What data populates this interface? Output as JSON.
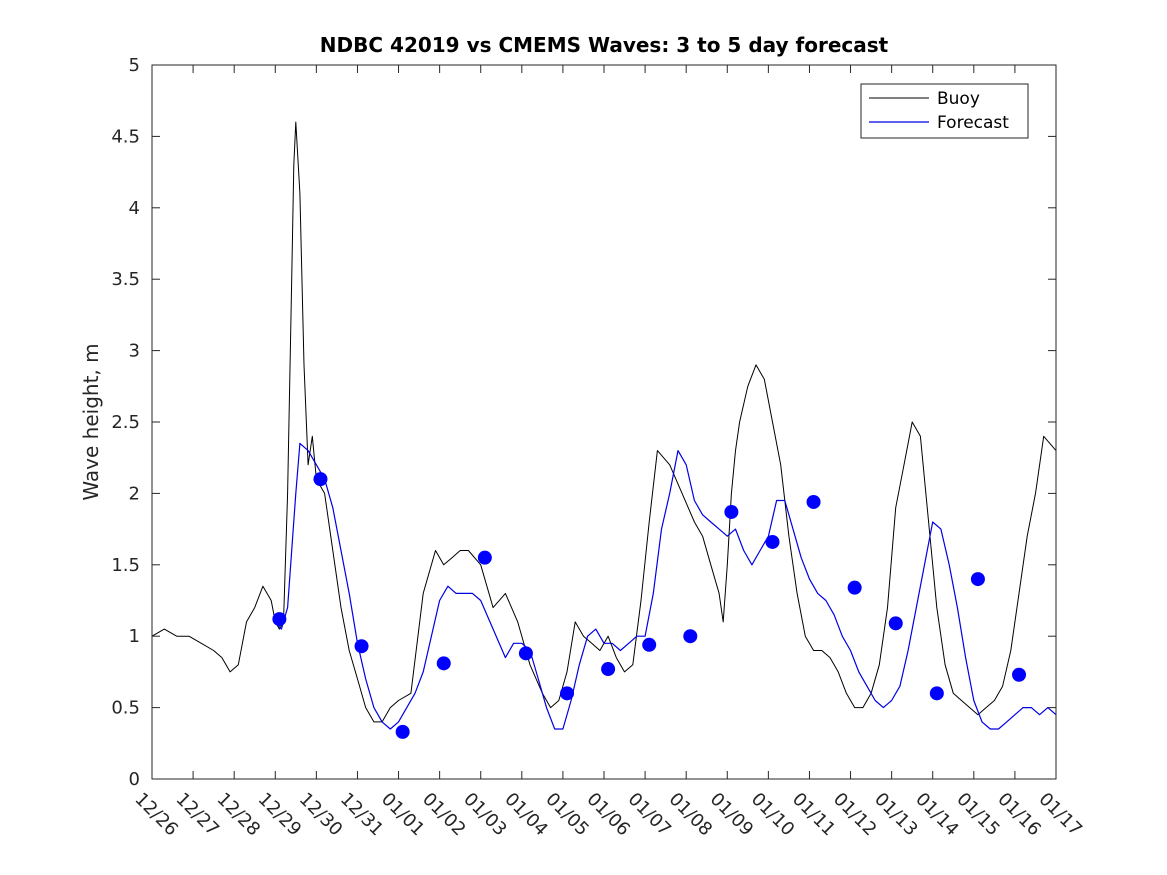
{
  "chart_data": {
    "type": "line",
    "title": "NDBC 42019 vs CMEMS Waves: 3 to 5 day forecast",
    "xlabel": "",
    "ylabel": "Wave height, m",
    "xlim": [
      0,
      22
    ],
    "ylim": [
      0,
      5
    ],
    "y_ticks": [
      0,
      0.5,
      1,
      1.5,
      2,
      2.5,
      3,
      3.5,
      4,
      4.5,
      5
    ],
    "y_tick_labels": [
      "0",
      "0.5",
      "1",
      "1.5",
      "2",
      "2.5",
      "3",
      "3.5",
      "4",
      "4.5",
      "5"
    ],
    "x_tick_labels": [
      "12/26",
      "12/27",
      "12/28",
      "12/29",
      "12/30",
      "12/31",
      "01/01",
      "01/02",
      "01/03",
      "01/04",
      "01/05",
      "01/06",
      "01/07",
      "01/08",
      "01/09",
      "01/10",
      "01/11",
      "01/12",
      "01/13",
      "01/14",
      "01/15",
      "01/16",
      "01/17"
    ],
    "legend": {
      "location": "top-right",
      "entries": [
        "Buoy",
        "Forecast"
      ]
    },
    "colors": {
      "buoy": "#000000",
      "forecast": "#0000e6",
      "marker": "#0000ff"
    },
    "series": [
      {
        "name": "Buoy",
        "x": [
          0,
          0.3,
          0.6,
          0.9,
          1.2,
          1.5,
          1.7,
          1.9,
          2.1,
          2.3,
          2.5,
          2.7,
          2.9,
          3.0,
          3.1,
          3.2,
          3.3,
          3.4,
          3.45,
          3.5,
          3.6,
          3.7,
          3.8,
          3.9,
          4.0,
          4.2,
          4.4,
          4.6,
          4.8,
          5.0,
          5.2,
          5.4,
          5.6,
          5.8,
          6.0,
          6.3,
          6.6,
          6.9,
          7.1,
          7.3,
          7.5,
          7.7,
          8.0,
          8.3,
          8.6,
          8.9,
          9.2,
          9.5,
          9.7,
          9.9,
          10.1,
          10.3,
          10.5,
          10.7,
          10.9,
          11.1,
          11.3,
          11.5,
          11.7,
          11.9,
          12.1,
          12.3,
          12.6,
          12.9,
          13.2,
          13.4,
          13.6,
          13.8,
          13.9,
          14.0,
          14.1,
          14.2,
          14.3,
          14.5,
          14.7,
          14.9,
          15.1,
          15.3,
          15.5,
          15.7,
          15.9,
          16.1,
          16.3,
          16.5,
          16.7,
          16.9,
          17.1,
          17.3,
          17.5,
          17.7,
          17.9,
          18.1,
          18.3,
          18.5,
          18.7,
          18.9,
          19.1,
          19.3,
          19.5,
          19.7,
          19.9,
          20.1,
          20.3,
          20.5,
          20.7,
          20.9,
          21.1,
          21.3,
          21.5,
          21.7,
          22
        ],
        "values": [
          1.0,
          1.05,
          1.0,
          1.0,
          0.95,
          0.9,
          0.85,
          0.75,
          0.8,
          1.1,
          1.2,
          1.35,
          1.25,
          1.1,
          1.05,
          1.1,
          2.0,
          3.5,
          4.3,
          4.6,
          4.1,
          2.9,
          2.2,
          2.4,
          2.1,
          2.0,
          1.6,
          1.2,
          0.9,
          0.7,
          0.5,
          0.4,
          0.4,
          0.5,
          0.55,
          0.6,
          1.3,
          1.6,
          1.5,
          1.55,
          1.6,
          1.6,
          1.5,
          1.2,
          1.3,
          1.1,
          0.8,
          0.6,
          0.5,
          0.55,
          0.75,
          1.1,
          1.0,
          0.95,
          0.9,
          1.0,
          0.85,
          0.75,
          0.8,
          1.25,
          1.8,
          2.3,
          2.2,
          2.0,
          1.8,
          1.7,
          1.5,
          1.3,
          1.1,
          1.5,
          2.0,
          2.3,
          2.5,
          2.75,
          2.9,
          2.8,
          2.5,
          2.2,
          1.7,
          1.3,
          1.0,
          0.9,
          0.9,
          0.85,
          0.75,
          0.6,
          0.5,
          0.5,
          0.6,
          0.8,
          1.2,
          1.9,
          2.2,
          2.5,
          2.4,
          1.8,
          1.2,
          0.8,
          0.6,
          0.55,
          0.5,
          0.45,
          0.5,
          0.55,
          0.65,
          0.9,
          1.3,
          1.7,
          2.0,
          2.4,
          2.3
        ]
      },
      {
        "name": "Forecast",
        "x": [
          3.0,
          3.15,
          3.3,
          3.5,
          3.6,
          3.8,
          4.0,
          4.2,
          4.4,
          4.6,
          4.8,
          5.0,
          5.2,
          5.4,
          5.6,
          5.8,
          6.0,
          6.2,
          6.4,
          6.6,
          6.8,
          7.0,
          7.2,
          7.4,
          7.6,
          7.8,
          8.0,
          8.3,
          8.6,
          8.8,
          9.0,
          9.2,
          9.4,
          9.6,
          9.8,
          10.0,
          10.2,
          10.4,
          10.6,
          10.8,
          11.0,
          11.2,
          11.4,
          11.6,
          11.8,
          12.0,
          12.2,
          12.4,
          12.6,
          12.8,
          13.0,
          13.2,
          13.4,
          13.6,
          13.8,
          14.0,
          14.2,
          14.4,
          14.6,
          14.8,
          15.0,
          15.2,
          15.4,
          15.6,
          15.8,
          16.0,
          16.2,
          16.4,
          16.6,
          16.8,
          17.0,
          17.2,
          17.4,
          17.6,
          17.8,
          18.0,
          18.2,
          18.4,
          18.6,
          18.8,
          19.0,
          19.2,
          19.4,
          19.6,
          19.8,
          20.0,
          20.2,
          20.4,
          20.6,
          20.8,
          21.0,
          21.2,
          21.4,
          21.6,
          21.8,
          22.0
        ],
        "values": [
          1.1,
          1.05,
          1.2,
          2.0,
          2.35,
          2.3,
          2.2,
          2.1,
          1.9,
          1.6,
          1.3,
          0.95,
          0.7,
          0.5,
          0.4,
          0.35,
          0.4,
          0.5,
          0.6,
          0.75,
          1.0,
          1.25,
          1.35,
          1.3,
          1.3,
          1.3,
          1.25,
          1.05,
          0.85,
          0.95,
          0.95,
          0.9,
          0.7,
          0.5,
          0.35,
          0.35,
          0.55,
          0.8,
          1.0,
          1.05,
          0.95,
          0.95,
          0.9,
          0.95,
          1.0,
          1.0,
          1.3,
          1.75,
          2.0,
          2.3,
          2.2,
          1.95,
          1.85,
          1.8,
          1.75,
          1.7,
          1.75,
          1.6,
          1.5,
          1.6,
          1.7,
          1.95,
          1.95,
          1.75,
          1.55,
          1.4,
          1.3,
          1.25,
          1.15,
          1.0,
          0.9,
          0.75,
          0.65,
          0.55,
          0.5,
          0.55,
          0.65,
          0.9,
          1.2,
          1.5,
          1.8,
          1.75,
          1.5,
          1.2,
          0.85,
          0.55,
          0.4,
          0.35,
          0.35,
          0.4,
          0.45,
          0.5,
          0.5,
          0.45,
          0.5,
          0.45
        ]
      },
      {
        "name": "Forecast markers",
        "x": [
          3.1,
          4.1,
          5.1,
          6.1,
          7.1,
          8.1,
          9.1,
          10.1,
          11.1,
          12.1,
          13.1,
          14.1,
          15.1,
          16.1,
          17.1,
          18.1,
          19.1,
          20.1,
          21.1
        ],
        "values": [
          1.12,
          2.1,
          0.93,
          0.33,
          0.81,
          1.55,
          0.88,
          0.6,
          0.77,
          0.94,
          1.0,
          1.87,
          1.66,
          1.94,
          1.34,
          1.09,
          0.6,
          1.4,
          0.73
        ]
      }
    ]
  }
}
